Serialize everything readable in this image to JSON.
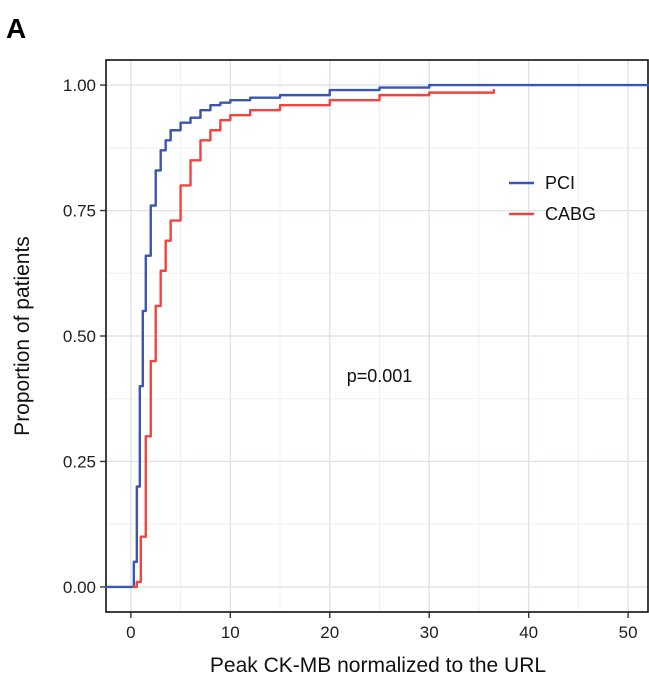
{
  "panel_label": "A",
  "colors": {
    "pci": "#3B55B0",
    "cabg": "#F2443F",
    "panel_border": "#111111"
  },
  "chart_data": {
    "type": "line",
    "step": true,
    "title": "",
    "xlabel": "Peak CK-MB normalized to the URL",
    "ylabel": "Proportion of patients",
    "xlim": [
      -2.5,
      52
    ],
    "ylim": [
      -0.05,
      1.05
    ],
    "x_ticks": [
      0,
      10,
      20,
      30,
      40,
      50
    ],
    "x_tick_labels": [
      "0",
      "10",
      "20",
      "30",
      "40",
      "50"
    ],
    "y_ticks": [
      0,
      0.25,
      0.5,
      0.75,
      1
    ],
    "y_tick_labels": [
      "0.00",
      "0.25",
      "0.50",
      "0.75",
      "1.00"
    ],
    "grid": true,
    "legend_position": "top-right",
    "annotation": {
      "text": "p=0.001",
      "x": 25,
      "y": 0.42
    },
    "series": [
      {
        "name": "PCI",
        "color": "#3B55B0",
        "x": [
          -2.5,
          0,
          0.3,
          0.6,
          0.9,
          1.2,
          1.5,
          2.0,
          2.5,
          3.0,
          3.5,
          4.0,
          5.0,
          6.0,
          7.0,
          8.0,
          9.0,
          10.0,
          12.0,
          15.0,
          20.0,
          25.0,
          30.0,
          40.0,
          52.0
        ],
        "y": [
          0,
          0,
          0.05,
          0.2,
          0.4,
          0.55,
          0.66,
          0.76,
          0.83,
          0.87,
          0.89,
          0.91,
          0.925,
          0.935,
          0.95,
          0.96,
          0.965,
          0.97,
          0.975,
          0.98,
          0.99,
          0.995,
          1.0,
          1.0,
          1.0
        ]
      },
      {
        "name": "CABG",
        "color": "#F2443F",
        "x": [
          0.3,
          0.6,
          1.0,
          1.5,
          2.0,
          2.5,
          3.0,
          3.5,
          4.0,
          5.0,
          6.0,
          7.0,
          8.0,
          9.0,
          10.0,
          12.0,
          15.0,
          20.0,
          25.0,
          30.0,
          36.5
        ],
        "y": [
          0,
          0.01,
          0.1,
          0.3,
          0.45,
          0.56,
          0.63,
          0.69,
          0.73,
          0.8,
          0.85,
          0.89,
          0.91,
          0.93,
          0.94,
          0.95,
          0.96,
          0.97,
          0.98,
          0.985,
          0.99
        ]
      }
    ]
  }
}
